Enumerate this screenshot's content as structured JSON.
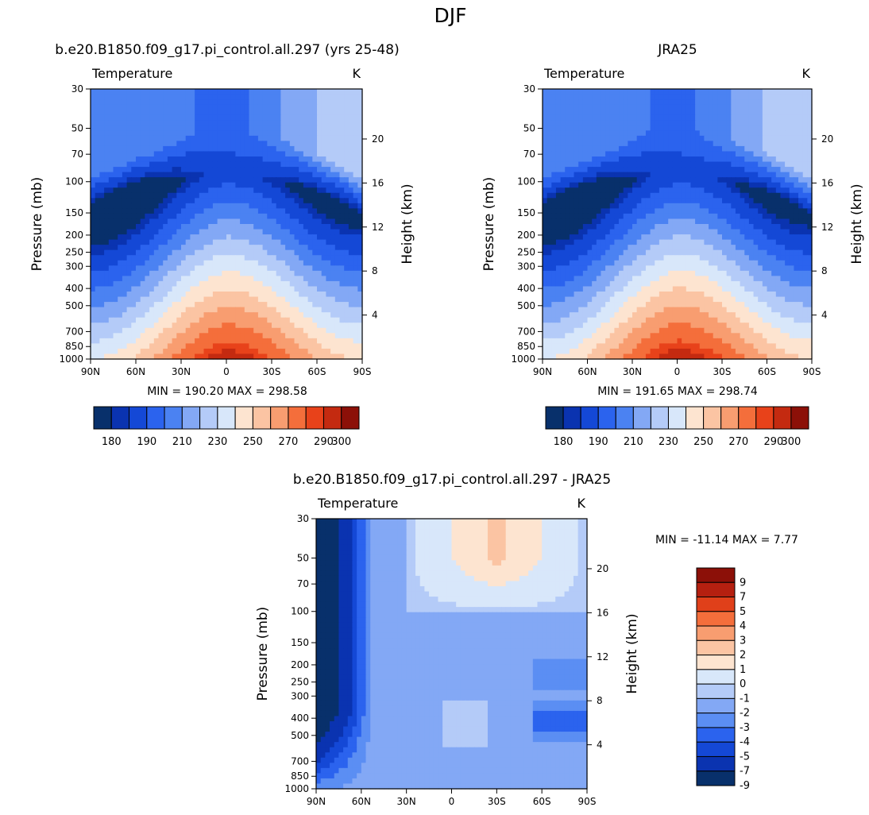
{
  "page_title": "DJF",
  "chart_data": [
    {
      "type": "contour",
      "title": "b.e20.B1850.f09_g17.pi_control.all.297 (yrs 25-48)",
      "left_string": "Temperature",
      "right_string": "K",
      "xlabel": "",
      "ylabel": "Pressure (mb)",
      "ylabel_right": "Height (km)",
      "x_ticks": [
        "90N",
        "60N",
        "30N",
        "0",
        "30S",
        "60S",
        "90S"
      ],
      "y_ticks": [
        30,
        50,
        70,
        100,
        150,
        200,
        250,
        300,
        400,
        500,
        700,
        850,
        1000
      ],
      "y_right_ticks": [
        4,
        8,
        12,
        16,
        20
      ],
      "min_max_text": "MIN = 190.20   MAX = 298.58",
      "min": 190.2,
      "max": 298.58,
      "colorbar_labels": [
        "180",
        "190",
        "210",
        "230",
        "250",
        "270",
        "290",
        "300"
      ]
    },
    {
      "type": "contour",
      "title": "JRA25",
      "left_string": "Temperature",
      "right_string": "K",
      "xlabel": "",
      "ylabel": "Pressure (mb)",
      "ylabel_right": "Height (km)",
      "x_ticks": [
        "90N",
        "60N",
        "30N",
        "0",
        "30S",
        "60S",
        "90S"
      ],
      "y_ticks": [
        30,
        50,
        70,
        100,
        150,
        200,
        250,
        300,
        400,
        500,
        700,
        850,
        1000
      ],
      "y_right_ticks": [
        4,
        8,
        12,
        16,
        20
      ],
      "min_max_text": "MIN = 191.65   MAX = 298.74",
      "min": 191.65,
      "max": 298.74,
      "colorbar_labels": [
        "180",
        "190",
        "210",
        "230",
        "250",
        "270",
        "290",
        "300"
      ]
    },
    {
      "type": "contour",
      "title": "b.e20.B1850.f09_g17.pi_control.all.297 - JRA25",
      "left_string": "Temperature",
      "right_string": "K",
      "xlabel": "",
      "ylabel": "Pressure (mb)",
      "ylabel_right": "Height (km)",
      "x_ticks": [
        "90N",
        "60N",
        "30N",
        "0",
        "30S",
        "60S",
        "90S"
      ],
      "y_ticks": [
        30,
        50,
        70,
        100,
        150,
        200,
        250,
        300,
        400,
        500,
        700,
        850,
        1000
      ],
      "y_right_ticks": [
        4,
        8,
        12,
        16,
        20
      ],
      "min_max_text": "MIN = -11.14   MAX =     7.77",
      "min": -11.14,
      "max": 7.77,
      "colorbar_labels": [
        "9",
        "7",
        "5",
        "4",
        "3",
        "2",
        "1",
        "0",
        "-1",
        "-2",
        "-3",
        "-4",
        "-5",
        "-7",
        "-9"
      ]
    }
  ],
  "colors": {
    "seq": [
      "#08306b",
      "#0a33b0",
      "#1448d6",
      "#2b63ee",
      "#4b82f2",
      "#83a8f5",
      "#b4cbf8",
      "#d8e7fa",
      "#fde4d0",
      "#fbc4a3",
      "#f89d70",
      "#f46e3b",
      "#e8421a",
      "#c42a10",
      "#8c1008"
    ],
    "diff": [
      "#8c1008",
      "#b52010",
      "#e0401a",
      "#f46e3b",
      "#f89d70",
      "#fbc4a3",
      "#fde4d0",
      "#d8e7fa",
      "#b4cbf8",
      "#83a8f5",
      "#5b8ef3",
      "#2b63ee",
      "#1448d6",
      "#0a33b0",
      "#08306b"
    ]
  }
}
